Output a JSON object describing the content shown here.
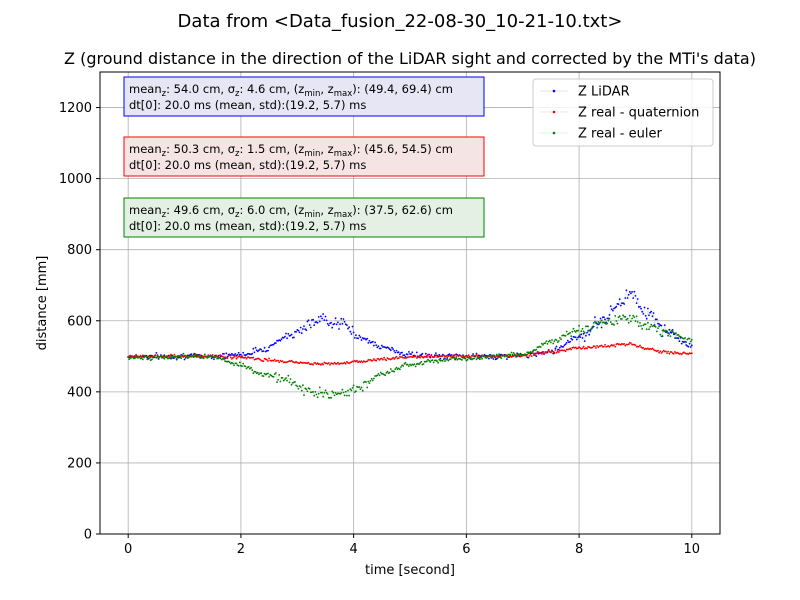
{
  "figure_title": "Data from <Data_fusion_22-08-30_10-21-10.txt>",
  "chart_data": {
    "type": "scatter",
    "title": "Z (ground distance in the direction of the LiDAR sight and corrected by the MTi's data)",
    "xlabel": "time [second]",
    "ylabel": "distance [mm]",
    "xlim": [
      -0.5,
      10.5
    ],
    "ylim": [
      0,
      1300
    ],
    "xticks": [
      0,
      2,
      4,
      6,
      8,
      10
    ],
    "yticks": [
      0,
      200,
      400,
      600,
      800,
      1000,
      1200
    ],
    "grid": true,
    "legend_position": "top-right",
    "series": [
      {
        "name": "Z LiDAR",
        "color": "#0000ff",
        "x": [
          0,
          0.5,
          1,
          1.5,
          2,
          2.4,
          2.8,
          3.2,
          3.5,
          3.8,
          4.1,
          4.5,
          5,
          5.5,
          6,
          6.5,
          7,
          7.5,
          8,
          8.4,
          8.7,
          8.9,
          9.2,
          9.5,
          10
        ],
        "y": [
          500,
          500,
          500,
          500,
          505,
          520,
          555,
          590,
          605,
          590,
          555,
          525,
          505,
          500,
          500,
          500,
          502,
          515,
          555,
          600,
          645,
          680,
          625,
          575,
          530
        ]
      },
      {
        "name": "Z real - quaternion",
        "color": "#ff0000",
        "x": [
          0,
          0.5,
          1,
          1.5,
          2,
          2.4,
          2.8,
          3.2,
          3.5,
          3.8,
          4.1,
          4.5,
          5,
          5.5,
          6,
          6.5,
          7,
          7.5,
          8,
          8.4,
          8.7,
          8.9,
          9.2,
          9.5,
          10
        ],
        "y": [
          500,
          500,
          500,
          500,
          497,
          490,
          485,
          480,
          478,
          480,
          485,
          492,
          498,
          500,
          500,
          500,
          502,
          512,
          522,
          528,
          533,
          535,
          522,
          512,
          508
        ]
      },
      {
        "name": "Z real - euler",
        "color": "#008000",
        "x": [
          0,
          0.5,
          1,
          1.5,
          2,
          2.4,
          2.8,
          3.2,
          3.5,
          3.8,
          4.1,
          4.5,
          5,
          5.5,
          6,
          6.5,
          7,
          7.5,
          8,
          8.4,
          8.7,
          8.9,
          9.2,
          9.5,
          10
        ],
        "y": [
          495,
          497,
          500,
          498,
          475,
          450,
          430,
          405,
          392,
          395,
          415,
          450,
          478,
          488,
          495,
          500,
          505,
          540,
          575,
          595,
          605,
          610,
          585,
          570,
          545
        ]
      }
    ],
    "annotations": [
      {
        "line1_prefix": "mean",
        "line1_sub": "z",
        "line1_mid1": ": 54.0 cm, σ",
        "line1_sub2": "z",
        "line1_mid2": ": 4.6 cm, (z",
        "line1_sub3": "min",
        "line1_mid3": ", z",
        "line1_sub4": "max",
        "line1_tail": "): (49.4, 69.4) cm",
        "line2": "dt[0]: 20.0 ms (mean, std):(19.2, 5.7) ms",
        "color": "#0000ff"
      },
      {
        "line1_prefix": "mean",
        "line1_sub": "z",
        "line1_mid1": ": 50.3 cm, σ",
        "line1_sub2": "z",
        "line1_mid2": ": 1.5 cm, (z",
        "line1_sub3": "min",
        "line1_mid3": ", z",
        "line1_sub4": "max",
        "line1_tail": "): (45.6, 54.5) cm",
        "line2": "dt[0]: 20.0 ms (mean, std):(19.2, 5.7) ms",
        "color": "#ff0000"
      },
      {
        "line1_prefix": "mean",
        "line1_sub": "z",
        "line1_mid1": ": 49.6 cm, σ",
        "line1_sub2": "z",
        "line1_mid2": ": 6.0 cm, (z",
        "line1_sub3": "min",
        "line1_mid3": ", z",
        "line1_sub4": "max",
        "line1_tail": "): (37.5, 62.6) cm",
        "line2": "dt[0]: 20.0 ms (mean, std):(19.2, 5.7) ms",
        "color": "#008000"
      }
    ]
  }
}
